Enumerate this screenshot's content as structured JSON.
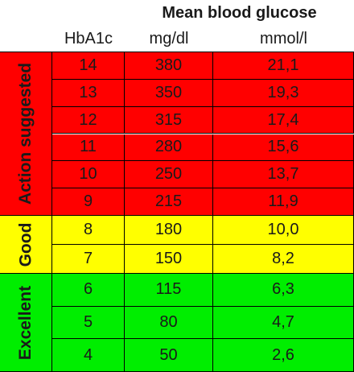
{
  "header": {
    "title": "Mean blood glucose",
    "columns": [
      "HbA1c",
      "mg/dl",
      "mmol/l"
    ]
  },
  "groups": [
    {
      "label": "Action suggested",
      "color": "#ff0000",
      "rows": [
        [
          "14",
          "380",
          "21,1"
        ],
        [
          "13",
          "350",
          "19,3"
        ],
        [
          "12",
          "315",
          "17,4"
        ],
        [
          "11",
          "280",
          "15,6"
        ],
        [
          "10",
          "250",
          "13,7"
        ],
        [
          "9",
          "215",
          "11,9"
        ]
      ]
    },
    {
      "label": "Good",
      "color": "#ffff00",
      "rows": [
        [
          "8",
          "180",
          "10,0"
        ],
        [
          "7",
          "150",
          "8,2"
        ]
      ]
    },
    {
      "label": "Excellent",
      "color": "#00ee00",
      "rows": [
        [
          "6",
          "115",
          "6,3"
        ],
        [
          "5",
          "80",
          "4,7"
        ],
        [
          "4",
          "50",
          "2,6"
        ]
      ]
    }
  ]
}
